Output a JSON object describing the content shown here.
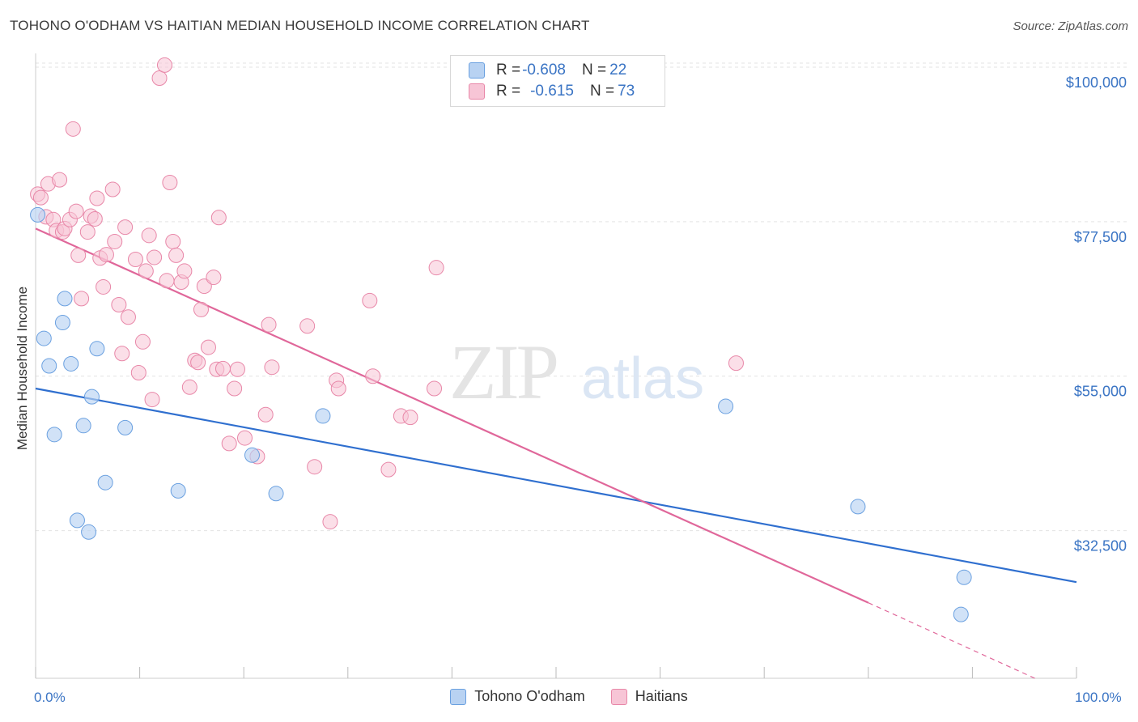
{
  "title": "TOHONO O'ODHAM VS HAITIAN MEDIAN HOUSEHOLD INCOME CORRELATION CHART",
  "source": "Source: ZipAtlas.com",
  "legend": {
    "series1": {
      "label_r": "R = ",
      "r": "-0.608",
      "label_n": "N = ",
      "n": "22"
    },
    "series2": {
      "label_r": "R = ",
      "r": "-0.615",
      "label_n": "N = ",
      "n": "73"
    }
  },
  "colors": {
    "tohono": "#6aa0e0",
    "tohono_fill": "#b8d2f2",
    "haitian": "#e887a8",
    "haitian_fill": "#f7c5d6",
    "tohono_line": "#2f6fcf",
    "haitian_line": "#e0679a",
    "axis_label": "#3a74c4"
  },
  "chart_data": {
    "type": "scatter",
    "ylabel": "Median Household Income",
    "xlim": [
      0,
      100
    ],
    "ylim": [
      11000,
      102000
    ],
    "x_tick_labels": [
      "0.0%",
      "100.0%"
    ],
    "y_ticks": [
      32500,
      55000,
      77500,
      100000
    ],
    "y_tick_labels": [
      "$32,500",
      "$55,000",
      "$77,500",
      "$100,000"
    ],
    "grid": true,
    "legend_position": "top-center",
    "series": [
      {
        "name": "Tohono O'odham",
        "points": [
          [
            0.2,
            78500
          ],
          [
            0.8,
            60500
          ],
          [
            1.3,
            56500
          ],
          [
            1.8,
            46500
          ],
          [
            2.6,
            62800
          ],
          [
            2.8,
            66300
          ],
          [
            3.4,
            56800
          ],
          [
            4.0,
            34000
          ],
          [
            4.6,
            47800
          ],
          [
            5.1,
            32300
          ],
          [
            5.4,
            52000
          ],
          [
            5.9,
            59000
          ],
          [
            6.7,
            39500
          ],
          [
            8.6,
            47500
          ],
          [
            13.7,
            38300
          ],
          [
            20.8,
            43500
          ],
          [
            23.1,
            37900
          ],
          [
            27.6,
            49200
          ],
          [
            66.3,
            50600
          ],
          [
            79.0,
            36000
          ],
          [
            89.2,
            25700
          ],
          [
            88.9,
            20300
          ]
        ],
        "trend": [
          [
            0,
            53200
          ],
          [
            100,
            25000
          ]
        ]
      },
      {
        "name": "Haitians",
        "points": [
          [
            0.2,
            81500
          ],
          [
            0.5,
            81000
          ],
          [
            1.0,
            78200
          ],
          [
            1.2,
            83000
          ],
          [
            1.7,
            77800
          ],
          [
            2.0,
            76200
          ],
          [
            2.3,
            83600
          ],
          [
            2.6,
            76000
          ],
          [
            2.8,
            76500
          ],
          [
            3.3,
            77800
          ],
          [
            3.6,
            91000
          ],
          [
            3.9,
            79000
          ],
          [
            4.1,
            72600
          ],
          [
            4.4,
            66300
          ],
          [
            5.0,
            76000
          ],
          [
            5.3,
            78300
          ],
          [
            5.7,
            77900
          ],
          [
            5.9,
            80900
          ],
          [
            6.2,
            72200
          ],
          [
            6.5,
            68000
          ],
          [
            6.8,
            72700
          ],
          [
            7.4,
            82200
          ],
          [
            7.6,
            74600
          ],
          [
            8.0,
            65400
          ],
          [
            8.3,
            58300
          ],
          [
            8.6,
            76700
          ],
          [
            8.9,
            63600
          ],
          [
            9.6,
            72000
          ],
          [
            9.9,
            55500
          ],
          [
            10.3,
            60000
          ],
          [
            10.6,
            70300
          ],
          [
            10.9,
            75500
          ],
          [
            11.2,
            51600
          ],
          [
            11.4,
            72300
          ],
          [
            11.9,
            98400
          ],
          [
            12.4,
            100300
          ],
          [
            12.6,
            68900
          ],
          [
            12.9,
            83200
          ],
          [
            13.2,
            74600
          ],
          [
            13.5,
            72600
          ],
          [
            14.0,
            68700
          ],
          [
            14.3,
            70300
          ],
          [
            14.8,
            53400
          ],
          [
            15.3,
            57300
          ],
          [
            15.6,
            57000
          ],
          [
            15.9,
            64700
          ],
          [
            16.2,
            68100
          ],
          [
            16.6,
            59200
          ],
          [
            17.1,
            69400
          ],
          [
            17.4,
            56000
          ],
          [
            17.6,
            78100
          ],
          [
            18.0,
            56100
          ],
          [
            18.6,
            45200
          ],
          [
            19.1,
            53200
          ],
          [
            19.4,
            56000
          ],
          [
            20.1,
            46000
          ],
          [
            21.3,
            43300
          ],
          [
            22.1,
            49400
          ],
          [
            22.4,
            62500
          ],
          [
            22.7,
            56300
          ],
          [
            26.1,
            62300
          ],
          [
            26.8,
            41800
          ],
          [
            28.3,
            33800
          ],
          [
            28.9,
            54400
          ],
          [
            29.1,
            53200
          ],
          [
            32.1,
            66000
          ],
          [
            32.4,
            55000
          ],
          [
            33.9,
            41400
          ],
          [
            35.1,
            49200
          ],
          [
            36.0,
            49000
          ],
          [
            38.3,
            53200
          ],
          [
            38.5,
            70800
          ],
          [
            67.3,
            56900
          ]
        ],
        "trend": [
          [
            0,
            76500
          ],
          [
            80,
            22000
          ]
        ],
        "trend_dashed": [
          [
            80,
            22000
          ],
          [
            96,
            11000
          ]
        ]
      }
    ]
  },
  "watermark": {
    "zip": "ZIP",
    "atlas": "atlas"
  }
}
